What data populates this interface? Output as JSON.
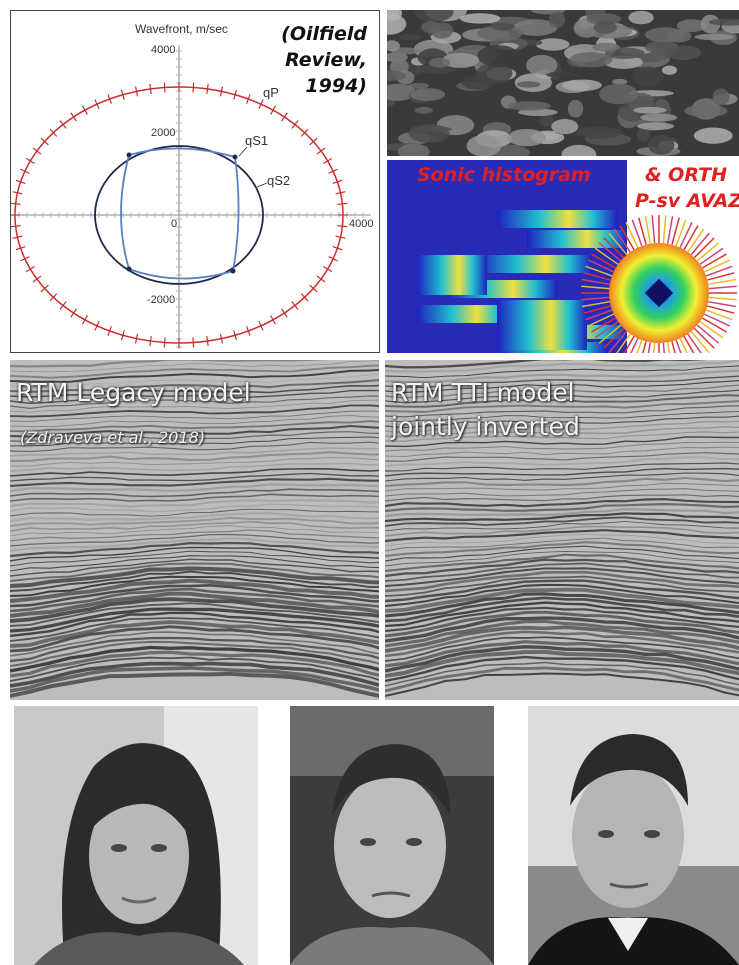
{
  "wavefront": {
    "title": "Wavefront, m/sec",
    "citation_lines": [
      "(Oilfield",
      "Review,",
      "1994)"
    ],
    "tick_top": "4000",
    "tick_2000_up": "2000",
    "tick_zero": "0",
    "tick_2000_down": "-2000",
    "tick_right": "4000",
    "label_qp": "qP",
    "label_qs1": "qS1",
    "label_qs2": "qS2"
  },
  "sonic": {
    "label_histogram": "Sonic histogram",
    "label_orth": "& ORTH",
    "label_avaz": "P-sv AVAZ"
  },
  "rtm_left": {
    "title": "RTM Legacy model",
    "subtitle": "(Zdraveva et al., 2018)"
  },
  "rtm_right": {
    "title": "RTM TTI model",
    "subtitle": "jointly inverted"
  },
  "colors": {
    "qp_curve": "#c8302f",
    "qs1_curve": "#5b7fc4",
    "qs2_curve": "#1f2a4a",
    "annotation_red": "#e02020"
  }
}
